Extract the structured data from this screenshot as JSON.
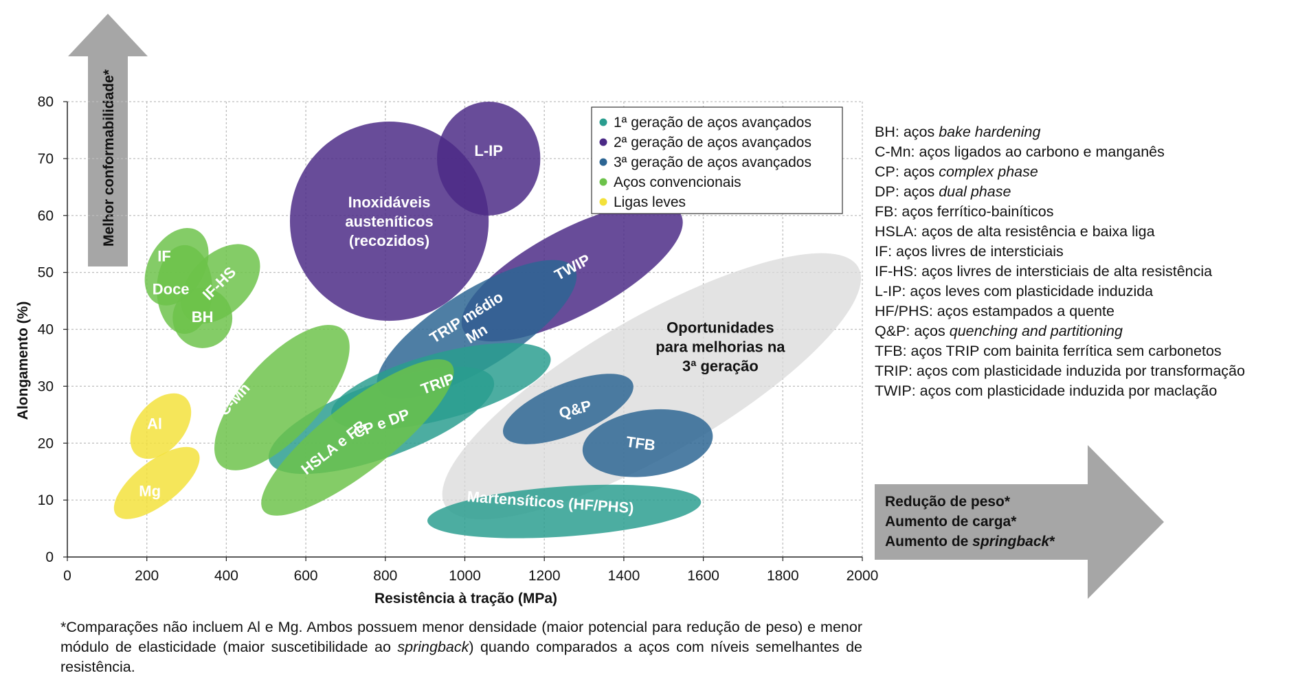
{
  "chart_data": {
    "type": "scatter",
    "xlabel": "Resistência à tração (MPa)",
    "ylabel": "Alongamento (%)",
    "xlim": [
      0,
      2000
    ],
    "ylim": [
      0,
      80
    ],
    "x_ticks": [
      "0",
      "200",
      "400",
      "600",
      "800",
      "1000",
      "1200",
      "1400",
      "1600",
      "1800",
      "2000"
    ],
    "y_ticks": [
      "0",
      "10",
      "20",
      "30",
      "40",
      "50",
      "60",
      "70",
      "80"
    ],
    "grid": true,
    "legend_position": "top-right",
    "legend": [
      {
        "label": "1ª geração de aços avançados",
        "color": "#2a9d8f"
      },
      {
        "label": "2ª geração de aços avançados",
        "color": "#4b2a86"
      },
      {
        "label": "3ª geração de aços avançados",
        "color": "#2c6593"
      },
      {
        "label": "Aços convencionais",
        "color": "#6cc24a"
      },
      {
        "label": "Ligas leves",
        "color": "#f3e13a"
      }
    ],
    "regions": [
      {
        "name": "Oportunidades para melhorias na 3ª geração",
        "lines": [
          "Oportunidades",
          "para melhorias na",
          "3ª geração"
        ],
        "group": "opportunity",
        "color": "#d9d9d9",
        "cx": 1470,
        "cy": 30,
        "rx": 600,
        "ry": 12,
        "angle": -30,
        "dark_text": true
      },
      {
        "name": "Inoxidáveis austeníticos (recozidos)",
        "lines": [
          "Inoxidáveis",
          "austeníticos",
          "(recozidos)"
        ],
        "group": "gen2",
        "color": "#4b2a86",
        "cx": 810,
        "cy": 59,
        "rx": 250,
        "ry": 17.5,
        "angle": 0
      },
      {
        "name": "TWIP",
        "lines": [
          "TWIP"
        ],
        "group": "gen2",
        "color": "#4b2a86",
        "cx": 1270,
        "cy": 50,
        "rx": 310,
        "ry": 7.5,
        "angle": -28
      },
      {
        "name": "L-IP",
        "lines": [
          "L-IP"
        ],
        "group": "gen2",
        "color": "#4b2a86",
        "cx": 1060,
        "cy": 70,
        "rx": 130,
        "ry": 10,
        "angle": 0
      },
      {
        "name": "TRIP médio Mn",
        "lines": [
          "TRIP médio",
          "Mn"
        ],
        "group": "gen3",
        "color": "#2c6593",
        "cx": 1030,
        "cy": 40,
        "rx": 290,
        "ry": 6.8,
        "angle": -32
      },
      {
        "name": "Q&P",
        "lines": [
          "Q&P"
        ],
        "group": "gen3",
        "color": "#2c6593",
        "cx": 1260,
        "cy": 26,
        "rx": 175,
        "ry": 4.5,
        "angle": -22
      },
      {
        "name": "TFB",
        "lines": [
          "TFB"
        ],
        "group": "gen3",
        "color": "#2c6593",
        "cx": 1460,
        "cy": 20,
        "rx": 165,
        "ry": 5.8,
        "angle": -8
      },
      {
        "name": "TRIP",
        "lines": [
          "TRIP"
        ],
        "group": "gen1",
        "color": "#2a9d8f",
        "cx": 940,
        "cy": 30,
        "rx": 285,
        "ry": 5.8,
        "angle": -15
      },
      {
        "name": "CP e DP",
        "lines": [
          "CP e DP"
        ],
        "group": "gen1",
        "color": "#2a9d8f",
        "cx": 790,
        "cy": 24,
        "rx": 300,
        "ry": 6.5,
        "angle": -20
      },
      {
        "name": "Martensíticos (HF/PHS)",
        "lines": [
          "Martensíticos (HF/PHS)"
        ],
        "group": "gen1",
        "color": "#2a9d8f",
        "cx": 1250,
        "cy": 8,
        "rx": 345,
        "ry": 4.4,
        "angle": -4
      },
      {
        "name": "C-Mn",
        "lines": [
          "C-Mn"
        ],
        "group": "conv",
        "color": "#6cc24a",
        "cx": 540,
        "cy": 28,
        "rx": 230,
        "ry": 6.8,
        "angle": -48
      },
      {
        "name": "HSLA e FB",
        "lines": [
          "HSLA e FB"
        ],
        "group": "conv",
        "color": "#6cc24a",
        "cx": 730,
        "cy": 21,
        "rx": 300,
        "ry": 6,
        "angle": -38
      },
      {
        "name": "IF",
        "lines": [
          "IF"
        ],
        "group": "conv",
        "color": "#6cc24a",
        "cx": 275,
        "cy": 51,
        "rx": 105,
        "ry": 4.9,
        "angle": -60
      },
      {
        "name": "IF-HS",
        "lines": [
          "IF-HS"
        ],
        "group": "conv",
        "color": "#6cc24a",
        "cx": 385,
        "cy": 48,
        "rx": 120,
        "ry": 5.2,
        "angle": -45
      },
      {
        "name": "Doce",
        "lines": [
          "Doce"
        ],
        "group": "conv",
        "color": "#6cc24a",
        "cx": 295,
        "cy": 47,
        "rx": 70,
        "ry": 7.8,
        "angle": 0
      },
      {
        "name": "BH",
        "lines": [
          "BH"
        ],
        "group": "conv",
        "color": "#6cc24a",
        "cx": 340,
        "cy": 42,
        "rx": 75,
        "ry": 5.3,
        "angle": -10
      },
      {
        "name": "Al",
        "lines": [
          "Al"
        ],
        "group": "light",
        "color": "#f3e13a",
        "cx": 235,
        "cy": 23,
        "rx": 95,
        "ry": 4.2,
        "angle": -50
      },
      {
        "name": "Mg",
        "lines": [
          "Mg"
        ],
        "group": "light",
        "color": "#f3e13a",
        "cx": 225,
        "cy": 13,
        "rx": 130,
        "ry": 3.8,
        "angle": -38
      }
    ]
  },
  "arrows": {
    "vertical_label": "Melhor conformabilidade*",
    "horizontal_lines": [
      "Redução de peso*",
      "Aumento de carga*",
      "Aumento de "
    ],
    "horizontal_italic": "springback",
    "horizontal_suffix": "*"
  },
  "abbreviations": [
    {
      "prefix": "BH: aços ",
      "italic": "bake hardening",
      "suffix": ""
    },
    {
      "prefix": "C-Mn: aços ligados ao carbono e manganês",
      "italic": "",
      "suffix": ""
    },
    {
      "prefix": "CP: aços ",
      "italic": "complex phase",
      "suffix": ""
    },
    {
      "prefix": "DP: aços ",
      "italic": "dual phase",
      "suffix": ""
    },
    {
      "prefix": "FB: aços ferrítico-bainíticos",
      "italic": "",
      "suffix": ""
    },
    {
      "prefix": "HSLA: aços de alta resistência e baixa liga",
      "italic": "",
      "suffix": ""
    },
    {
      "prefix": "IF: aços livres de intersticiais",
      "italic": "",
      "suffix": ""
    },
    {
      "prefix": "IF-HS: aços livres de intersticiais de alta resistência",
      "italic": "",
      "suffix": ""
    },
    {
      "prefix": "L-IP: aços leves com plasticidade induzida",
      "italic": "",
      "suffix": ""
    },
    {
      "prefix": "HF/PHS: aços estampados a quente",
      "italic": "",
      "suffix": ""
    },
    {
      "prefix": "Q&P: aços ",
      "italic": "quenching and partitioning",
      "suffix": ""
    },
    {
      "prefix": "TFB: aços TRIP com bainita ferrítica sem carbonetos",
      "italic": "",
      "suffix": ""
    },
    {
      "prefix": "TRIP: aços com plasticidade induzida por transformação",
      "italic": "",
      "suffix": ""
    },
    {
      "prefix": "TWIP: aços com plasticidade induzida por maclação",
      "italic": "",
      "suffix": ""
    }
  ],
  "footnote": {
    "part1": "*Comparações não incluem Al e Mg. Ambos possuem menor densidade (maior potencial para redução de peso) e menor módulo de elasticidade (maior suscetibilidade ao ",
    "italic": "springback",
    "part2": ") quando comparados a aços com níveis semelhantes de resistência."
  }
}
